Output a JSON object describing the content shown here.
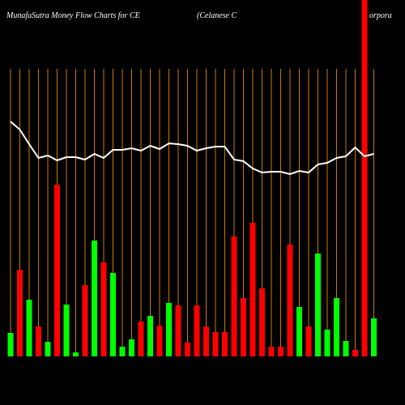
{
  "chart_data": {
    "type": "bar",
    "title": "MunafaSutra  Money Flow  Charts for CE",
    "subtitle": "(Celanese  C",
    "subtitle_tail": "orpora",
    "ylim": [
      0,
      440
    ],
    "bar_colors": [
      "#00ff00",
      "#ff0000",
      "#00ff00",
      "#ff0000",
      "#00ff00",
      "#ff0000",
      "#00ff00",
      "#00ff00",
      "#ff0000",
      "#00ff00",
      "#ff0000",
      "#00ff00",
      "#00ff00",
      "#00ff00",
      "#ff0000",
      "#00ff00",
      "#ff0000",
      "#00ff00",
      "#ff0000",
      "#ff0000",
      "#ff0000",
      "#ff0000",
      "#ff0000",
      "#ff0000",
      "#ff0000",
      "#ff0000",
      "#ff0000",
      "#ff0000",
      "#ff0000",
      "#ff0000",
      "#ff0000",
      "#00ff00",
      "#ff0000",
      "#00ff00",
      "#00ff00",
      "#00ff00",
      "#00ff00",
      "#ff0000",
      "#ff0000",
      "#00ff00"
    ],
    "values": [
      29,
      107,
      70,
      37,
      18,
      212,
      64,
      5,
      88,
      143,
      116,
      103,
      12,
      21,
      43,
      50,
      38,
      66,
      63,
      17,
      63,
      37,
      30,
      30,
      148,
      72,
      165,
      84,
      12,
      12,
      138,
      61,
      37,
      127,
      33,
      72,
      19,
      8,
      460,
      47
    ],
    "line_color": "#ffffff",
    "line_values": [
      290,
      280,
      262,
      245,
      248,
      242,
      246,
      246,
      243,
      250,
      245,
      255,
      255,
      257,
      254,
      260,
      256,
      263,
      262,
      260,
      254,
      257,
      259,
      259,
      243,
      241,
      232,
      227,
      228,
      228,
      225,
      229,
      227,
      237,
      239,
      245,
      247,
      258,
      247,
      250
    ],
    "grid_color": "#cc7a00"
  }
}
